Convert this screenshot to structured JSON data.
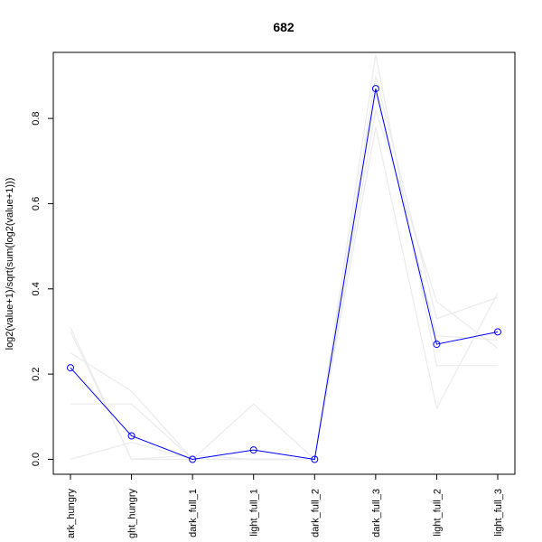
{
  "chart_data": {
    "type": "line",
    "title": "682",
    "xlabel": "",
    "ylabel": "log2(value+1)/sqrt(sum(log2(value+1)))",
    "categories": [
      "dark_hungry",
      "light_hungry",
      "dark_full_1",
      "light_full_1",
      "dark_full_2",
      "dark_full_3",
      "light_full_2",
      "light_full_3"
    ],
    "visible_category_labels": [
      "ark_hungry",
      "ght_hungry",
      "dark_full_1",
      "light_full_1",
      "dark_full_2",
      "dark_full_3",
      "light_full_2",
      "light_full_3"
    ],
    "ylim": [
      -0.035,
      0.955
    ],
    "yticks": [
      0.0,
      0.2,
      0.4,
      0.6,
      0.8
    ],
    "ytick_labels": [
      "0.0",
      "0.2",
      "0.4",
      "0.6",
      "0.8"
    ],
    "grid": false,
    "highlight_color": "#0000ff",
    "background_color": "#ebebeb",
    "series": [
      {
        "role": "highlight",
        "values": [
          0.215,
          0.055,
          0.0,
          0.022,
          0.0,
          0.87,
          0.27,
          0.299
        ]
      },
      {
        "role": "background",
        "values": [
          0.31,
          0.0,
          0.0,
          0.0,
          0.0,
          0.95,
          0.22,
          0.22
        ]
      },
      {
        "role": "background",
        "values": [
          0.13,
          0.13,
          0.0,
          0.0,
          0.0,
          0.82,
          0.37,
          0.26
        ]
      },
      {
        "role": "background",
        "values": [
          0.25,
          0.16,
          0.0,
          0.13,
          0.0,
          0.78,
          0.12,
          0.39
        ]
      },
      {
        "role": "background",
        "values": [
          0.0,
          0.04,
          0.0,
          0.0,
          0.0,
          0.9,
          0.33,
          0.38
        ]
      },
      {
        "role": "background",
        "values": [
          0.3,
          0.0,
          0.01,
          0.0,
          0.0,
          0.86,
          0.29,
          0.28
        ]
      }
    ]
  }
}
